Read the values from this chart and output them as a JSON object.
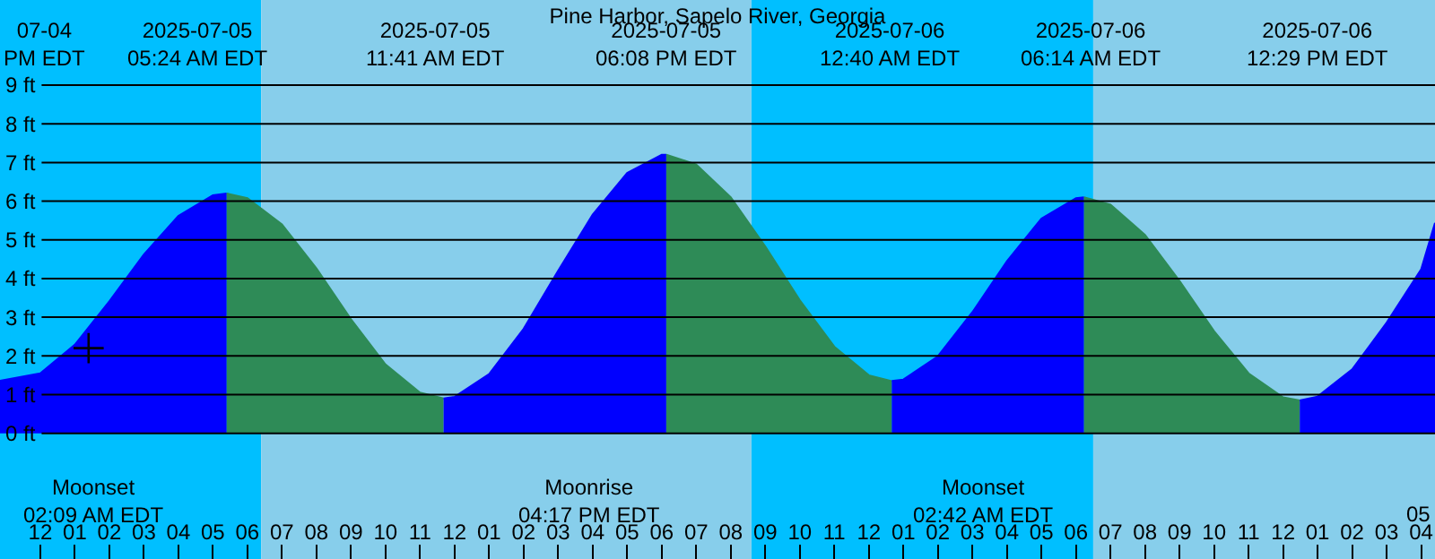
{
  "chart_data": {
    "type": "area",
    "title": "Pine Harbor, Sapelo River, Georgia",
    "xlim": [
      "2025-07-04T22:50",
      "2025-07-06T16:24"
    ],
    "ylim": [
      -3.25,
      11.2
    ],
    "xticks": [
      {
        "value": "2025-07-05T00:00",
        "label": "12"
      },
      {
        "value": "2025-07-05T01:00",
        "label": "01"
      },
      {
        "value": "2025-07-05T02:00",
        "label": "02"
      },
      {
        "value": "2025-07-05T03:00",
        "label": "03"
      },
      {
        "value": "2025-07-05T04:00",
        "label": "04"
      },
      {
        "value": "2025-07-05T05:00",
        "label": "05"
      },
      {
        "value": "2025-07-05T06:00",
        "label": "06"
      },
      {
        "value": "2025-07-05T07:00",
        "label": "07"
      },
      {
        "value": "2025-07-05T08:00",
        "label": "08"
      },
      {
        "value": "2025-07-05T09:00",
        "label": "09"
      },
      {
        "value": "2025-07-05T10:00",
        "label": "10"
      },
      {
        "value": "2025-07-05T11:00",
        "label": "11"
      },
      {
        "value": "2025-07-05T12:00",
        "label": "12"
      },
      {
        "value": "2025-07-05T13:00",
        "label": "01"
      },
      {
        "value": "2025-07-05T14:00",
        "label": "02"
      },
      {
        "value": "2025-07-05T15:00",
        "label": "03"
      },
      {
        "value": "2025-07-05T16:00",
        "label": "04"
      },
      {
        "value": "2025-07-05T17:00",
        "label": "05"
      },
      {
        "value": "2025-07-05T18:00",
        "label": "06"
      },
      {
        "value": "2025-07-05T19:00",
        "label": "07"
      },
      {
        "value": "2025-07-05T20:00",
        "label": "08"
      },
      {
        "value": "2025-07-05T21:00",
        "label": "09"
      },
      {
        "value": "2025-07-05T22:00",
        "label": "10"
      },
      {
        "value": "2025-07-05T23:00",
        "label": "11"
      },
      {
        "value": "2025-07-06T00:00",
        "label": "12"
      },
      {
        "value": "2025-07-06T01:00",
        "label": "01"
      },
      {
        "value": "2025-07-06T02:00",
        "label": "02"
      },
      {
        "value": "2025-07-06T03:00",
        "label": "03"
      },
      {
        "value": "2025-07-06T04:00",
        "label": "04"
      },
      {
        "value": "2025-07-06T05:00",
        "label": "05"
      },
      {
        "value": "2025-07-06T06:00",
        "label": "06"
      },
      {
        "value": "2025-07-06T07:00",
        "label": "07"
      },
      {
        "value": "2025-07-06T08:00",
        "label": "08"
      },
      {
        "value": "2025-07-06T09:00",
        "label": "09"
      },
      {
        "value": "2025-07-06T10:00",
        "label": "10"
      },
      {
        "value": "2025-07-06T11:00",
        "label": "11"
      },
      {
        "value": "2025-07-06T12:00",
        "label": "12"
      },
      {
        "value": "2025-07-06T13:00",
        "label": "01"
      },
      {
        "value": "2025-07-06T14:00",
        "label": "02"
      },
      {
        "value": "2025-07-06T15:00",
        "label": "03"
      },
      {
        "value": "2025-07-06T16:00",
        "label": "04"
      }
    ],
    "yticks": [
      {
        "value": 0,
        "label": "0 ft"
      },
      {
        "value": 1,
        "label": "1 ft"
      },
      {
        "value": 2,
        "label": "2 ft"
      },
      {
        "value": 3,
        "label": "3 ft"
      },
      {
        "value": 4,
        "label": "4 ft"
      },
      {
        "value": 5,
        "label": "5 ft"
      },
      {
        "value": 6,
        "label": "6 ft"
      },
      {
        "value": 7,
        "label": "7 ft"
      },
      {
        "value": 8,
        "label": "8 ft"
      },
      {
        "value": 9,
        "label": "9 ft"
      }
    ],
    "grid": "y",
    "bands": [
      {
        "axis": "x",
        "from": "2025-07-04T22:50",
        "to": "2025-07-05T06:24",
        "color": "#00bfff"
      },
      {
        "axis": "x",
        "from": "2025-07-05T06:24",
        "to": "2025-07-05T20:36",
        "color": "#87ceeb"
      },
      {
        "axis": "x",
        "from": "2025-07-05T20:36",
        "to": "2025-07-06T06:30",
        "color": "#00bfff"
      },
      {
        "axis": "x",
        "from": "2025-07-06T06:30",
        "to": "2025-07-06T16:24",
        "color": "#87ceeb"
      }
    ],
    "series": [
      {
        "color": "#0000ff",
        "x": [
          "2025-07-04T22:50",
          "2025-07-05T00:00",
          "2025-07-05T01:00",
          "2025-07-05T02:00",
          "2025-07-05T03:00",
          "2025-07-05T04:00",
          "2025-07-05T05:00",
          "2025-07-05T05:24"
        ],
        "values": [
          1.36,
          1.55,
          2.29,
          3.41,
          4.62,
          5.62,
          6.15,
          6.2
        ]
      },
      {
        "color": "#2e8b57",
        "x": [
          "2025-07-05T05:24",
          "2025-07-05T06:00",
          "2025-07-05T07:00",
          "2025-07-05T08:00",
          "2025-07-05T09:00",
          "2025-07-05T10:00",
          "2025-07-05T11:00",
          "2025-07-05T11:41"
        ],
        "values": [
          6.2,
          6.08,
          5.4,
          4.26,
          2.95,
          1.78,
          1.05,
          0.9
        ]
      },
      {
        "color": "#0000ff",
        "x": [
          "2025-07-05T11:41",
          "2025-07-05T12:00",
          "2025-07-05T13:00",
          "2025-07-05T14:00",
          "2025-07-05T15:00",
          "2025-07-05T16:00",
          "2025-07-05T17:00",
          "2025-07-05T18:00",
          "2025-07-05T18:08"
        ],
        "values": [
          0.9,
          0.94,
          1.53,
          2.7,
          4.2,
          5.65,
          6.73,
          7.2,
          7.2
        ]
      },
      {
        "color": "#2e8b57",
        "x": [
          "2025-07-05T18:08",
          "2025-07-05T19:00",
          "2025-07-05T20:00",
          "2025-07-05T21:00",
          "2025-07-05T22:00",
          "2025-07-05T23:00",
          "2025-07-06T00:00",
          "2025-07-06T00:40"
        ],
        "values": [
          7.2,
          6.95,
          6.1,
          4.83,
          3.44,
          2.24,
          1.5,
          1.35
        ]
      },
      {
        "color": "#0000ff",
        "x": [
          "2025-07-06T00:40",
          "2025-07-06T01:00",
          "2025-07-06T02:00",
          "2025-07-06T03:00",
          "2025-07-06T04:00",
          "2025-07-06T05:00",
          "2025-07-06T06:00",
          "2025-07-06T06:14"
        ],
        "values": [
          1.35,
          1.39,
          1.99,
          3.13,
          4.45,
          5.55,
          6.08,
          6.1
        ]
      },
      {
        "color": "#2e8b57",
        "x": [
          "2025-07-06T06:14",
          "2025-07-06T07:00",
          "2025-07-06T08:00",
          "2025-07-06T09:00",
          "2025-07-06T10:00",
          "2025-07-06T11:00",
          "2025-07-06T12:00",
          "2025-07-06T12:29"
        ],
        "values": [
          6.1,
          5.91,
          5.13,
          3.94,
          2.64,
          1.55,
          0.93,
          0.85
        ]
      },
      {
        "color": "#0000ff",
        "x": [
          "2025-07-06T12:29",
          "2025-07-06T13:00",
          "2025-07-06T14:00",
          "2025-07-06T15:00",
          "2025-07-06T16:00",
          "2025-07-06T16:24"
        ],
        "values": [
          0.85,
          0.95,
          1.65,
          2.86,
          4.24,
          5.44
        ]
      },
      {
        "type": "scatter",
        "color": "#000000",
        "marker": "cross",
        "x": [
          "2025-07-05T01:24"
        ],
        "values": [
          2.2
        ]
      }
    ],
    "annotations": [
      "07-04\nPM EDT",
      "2025-07-05\n05:24 AM EDT",
      "2025-07-05\n11:41 AM EDT",
      "2025-07-05\n06:08 PM EDT",
      "2025-07-06\n12:40 AM EDT",
      "2025-07-06\n06:14 AM EDT",
      "2025-07-06\n12:29 PM EDT",
      "Moonset\n02:09 AM EDT",
      "Moonrise\n04:17 PM EDT",
      "Moonset\n02:42 AM EDT",
      "05"
    ]
  }
}
